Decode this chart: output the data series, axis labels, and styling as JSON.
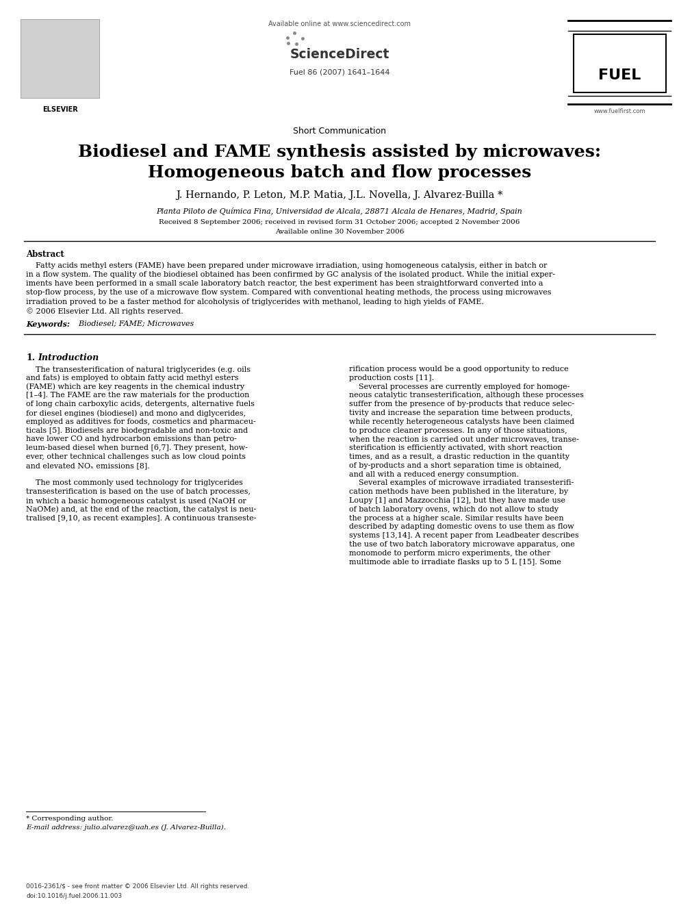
{
  "background_color": "#ffffff",
  "page_width": 9.92,
  "page_height": 13.23,
  "dpi": 100,
  "header": {
    "available_online": "Available online at www.sciencedirect.com",
    "journal_info": "Fuel 86 (2007) 1641–1644",
    "sciencedirect_text": "ScienceDirect",
    "website": "www.fuelfirst.com",
    "elsevier_label": "ELSEVIER"
  },
  "section_label": "Short Communication",
  "title_line1": "Biodiesel and FAME synthesis assisted by microwaves:",
  "title_line2": "Homogeneous batch and flow processes",
  "authors": "J. Hernando, P. Leton, M.P. Matia, J.L. Novella, J. Alvarez-Builla *",
  "affiliation": "Planta Piloto de Química Fina, Universidad de Alcala, 28871 Alcala de Henares, Madrid, Spain",
  "received": "Received 8 September 2006; received in revised form 31 October 2006; accepted 2 November 2006",
  "available": "Available online 30 November 2006",
  "abstract_heading": "Abstract",
  "abstract_lines": [
    "    Fatty acids methyl esters (FAME) have been prepared under microwave irradiation, using homogeneous catalysis, either in batch or",
    "in a flow system. The quality of the biodiesel obtained has been confirmed by GC analysis of the isolated product. While the initial exper-",
    "iments have been performed in a small scale laboratory batch reactor, the best experiment has been straightforward converted into a",
    "stop-flow process, by the use of a microwave flow system. Compared with conventional heating methods, the process using microwaves",
    "irradiation proved to be a faster method for alcoholysis of triglycerides with methanol, leading to high yields of FAME.",
    "© 2006 Elsevier Ltd. All rights reserved."
  ],
  "keywords_label": "Keywords:",
  "keywords": "  Biodiesel; FAME; Microwaves",
  "section1_num": "1.",
  "section1_name": "Introduction",
  "col1_lines": [
    "    The transesterification of natural triglycerides (e.g. oils",
    "and fats) is employed to obtain fatty acid methyl esters",
    "(FAME) which are key reagents in the chemical industry",
    "[1–4]. The FAME are the raw materials for the production",
    "of long chain carboxylic acids, detergents, alternative fuels",
    "for diesel engines (biodiesel) and mono and diglycerides,",
    "employed as additives for foods, cosmetics and pharmaceu-",
    "ticals [5]. Biodiesels are biodegradable and non-toxic and",
    "have lower CO and hydrocarbon emissions than petro-",
    "leum-based diesel when burned [6,7]. They present, how-",
    "ever, other technical challenges such as low cloud points",
    "and elevated NOₓ emissions [8].",
    "",
    "    The most commonly used technology for triglycerides",
    "transesterification is based on the use of batch processes,",
    "in which a basic homogeneous catalyst is used (NaOH or",
    "NaOMe) and, at the end of the reaction, the catalyst is neu-",
    "tralised [9,10, as recent examples]. A continuous transeste-"
  ],
  "col2_lines": [
    "rification process would be a good opportunity to reduce",
    "production costs [11].",
    "    Several processes are currently employed for homoge-",
    "neous catalytic transesterification, although these processes",
    "suffer from the presence of by-products that reduce selec-",
    "tivity and increase the separation time between products,",
    "while recently heterogeneous catalysts have been claimed",
    "to produce cleaner processes. In any of those situations,",
    "when the reaction is carried out under microwaves, transe-",
    "sterification is efficiently activated, with short reaction",
    "times, and as a result, a drastic reduction in the quantity",
    "of by-products and a short separation time is obtained,",
    "and all with a reduced energy consumption.",
    "    Several examples of microwave irradiated transesterifi-",
    "cation methods have been published in the literature, by",
    "Loupy [1] and Mazzocchia [12], but they have made use",
    "of batch laboratory ovens, which do not allow to study",
    "the process at a higher scale. Similar results have been",
    "described by adapting domestic ovens to use them as flow",
    "systems [13,14]. A recent paper from Leadbeater describes",
    "the use of two batch laboratory microwave apparatus, one",
    "monomode to perform micro experiments, the other",
    "multimode able to irradiate flasks up to 5 L [15]. Some"
  ],
  "footnote_star": "* Corresponding author.",
  "footnote_email": "E-mail address: julio.alvarez@uah.es (J. Alvarez-Builla).",
  "footer_issn": "0016-2361/$ - see front matter © 2006 Elsevier Ltd. All rights reserved.",
  "footer_doi": "doi:10.1016/j.fuel.2006.11.003"
}
